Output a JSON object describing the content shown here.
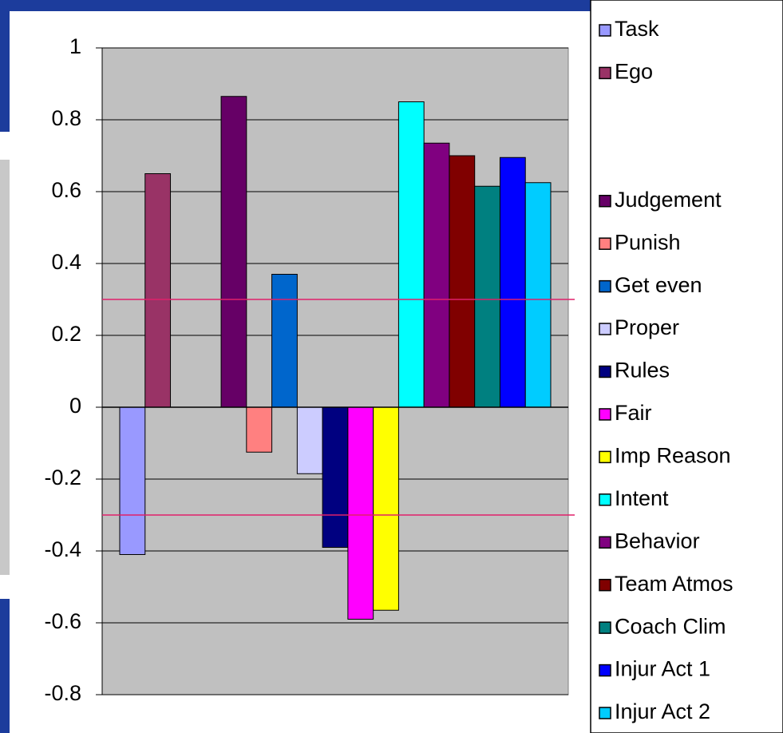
{
  "chart_data": {
    "type": "bar",
    "series": [
      {
        "name": "Task",
        "color": "#9999ff",
        "values": [
          -0.41
        ]
      },
      {
        "name": "Ego",
        "color": "#993366",
        "values": [
          0.65
        ]
      },
      {
        "name": null,
        "color": null,
        "values": [
          null
        ]
      },
      {
        "name": null,
        "color": null,
        "values": [
          null
        ]
      },
      {
        "name": "Judgement",
        "color": "#660066",
        "values": [
          0.865
        ]
      },
      {
        "name": "Punish",
        "color": "#ff8080",
        "values": [
          -0.125
        ]
      },
      {
        "name": "Get even",
        "color": "#0066cc",
        "values": [
          0.37
        ]
      },
      {
        "name": "Proper",
        "color": "#ccccff",
        "values": [
          -0.185
        ]
      },
      {
        "name": "Rules",
        "color": "#000080",
        "values": [
          -0.39
        ]
      },
      {
        "name": "Fair",
        "color": "#ff00ff",
        "values": [
          -0.59
        ]
      },
      {
        "name": "Imp Reason",
        "color": "#ffff00",
        "values": [
          -0.565
        ]
      },
      {
        "name": "Intent",
        "color": "#00ffff",
        "values": [
          0.85
        ]
      },
      {
        "name": "Behavior",
        "color": "#800080",
        "values": [
          0.735
        ]
      },
      {
        "name": "Team Atmos",
        "color": "#800000",
        "values": [
          0.7
        ]
      },
      {
        "name": "Coach Clim",
        "color": "#008080",
        "values": [
          0.615
        ]
      },
      {
        "name": "Injur Act 1",
        "color": "#0000ff",
        "values": [
          0.695
        ]
      },
      {
        "name": "Injur Act 2",
        "color": "#00ccff",
        "values": [
          0.625
        ]
      }
    ],
    "ylim": [
      -0.8,
      1
    ],
    "yticks": [
      -0.8,
      -0.6,
      -0.4,
      -0.2,
      0,
      0.2,
      0.4,
      0.6,
      0.8,
      1
    ],
    "grid": true,
    "hlines": [
      0.3,
      -0.3
    ],
    "hline_color": "#e0206a",
    "plot_background": "#c0c0c0",
    "legend": "right"
  }
}
